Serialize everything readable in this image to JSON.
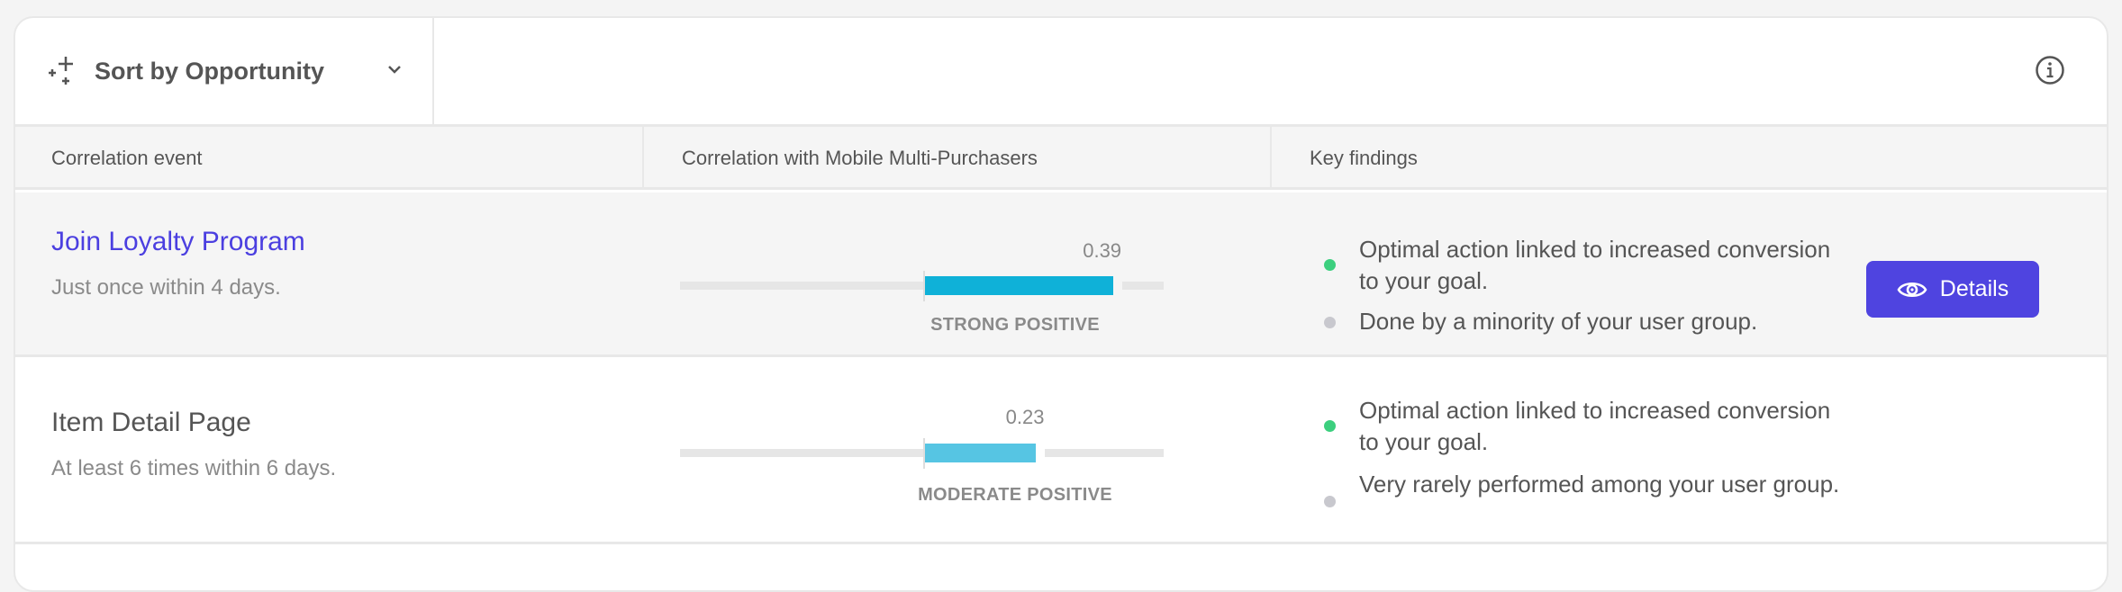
{
  "toolbar": {
    "sort_label": "Sort by Opportunity",
    "sort_icon": "sparkle-icon",
    "info_icon": "info-icon"
  },
  "columns": [
    "Correlation event",
    "Correlation with Mobile Multi-Purchasers",
    "Key findings"
  ],
  "rows": [
    {
      "event": "Join Loyalty Program",
      "condition": "Just once within 4 days.",
      "correlation": 0.39,
      "correlation_label": "0.39",
      "strength": "STRONG POSITIVE",
      "bar_color": "#0fb1d8",
      "findings": [
        {
          "text": "Optimal action linked to increased conversion to your goal.",
          "color": "#3ccf7e"
        },
        {
          "text": "Done by a minority of your user group.",
          "color": "#c8c8ce"
        }
      ],
      "details_label": "Details"
    },
    {
      "event": "Item Detail Page",
      "condition": "At least 6 times within 6 days.",
      "correlation": 0.23,
      "correlation_label": "0.23",
      "strength": "MODERATE POSITIVE",
      "bar_color": "#56c5e3",
      "findings": [
        {
          "text": "Optimal action linked to increased conversion to your goal.",
          "color": "#3ccf7e"
        },
        {
          "text": "Very rarely performed among your user group.",
          "color": "#c8c8ce"
        }
      ]
    }
  ],
  "colors": {
    "accent": "#4f44e0",
    "link": "#4b3fe0"
  }
}
